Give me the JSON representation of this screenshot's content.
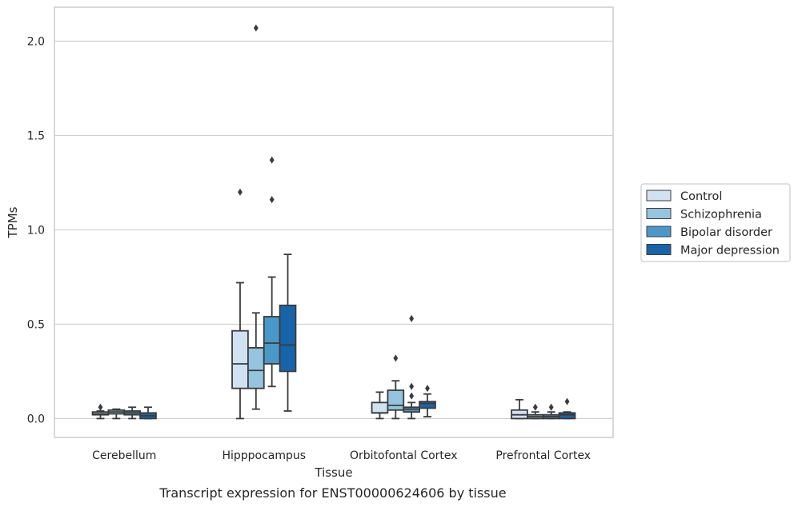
{
  "caption": "Transcript expression for ENST00000624606 by tissue",
  "chart_data": {
    "type": "box",
    "title": "",
    "xlabel": "Tissue",
    "ylabel": "TPMs",
    "ylim": [
      -0.1,
      2.18
    ],
    "yticks": [
      0.0,
      0.5,
      1.0,
      1.5,
      2.0
    ],
    "ytick_labels": [
      "0.0",
      "0.5",
      "1.0",
      "1.5",
      "2.0"
    ],
    "grid": "horizontal",
    "legend_position": "right",
    "categories": [
      "Cerebellum",
      "Hipppocampus",
      "Orbitofontal Cortex",
      "Prefrontal Cortex"
    ],
    "series": [
      {
        "name": "Control",
        "color": "#d0e1f2",
        "boxes": [
          {
            "whislo": 0.0,
            "q1": 0.02,
            "med": 0.025,
            "q3": 0.035,
            "whishi": 0.04,
            "fliers": [
              0.06
            ]
          },
          {
            "whislo": 0.0,
            "q1": 0.16,
            "med": 0.29,
            "q3": 0.465,
            "whishi": 0.72,
            "fliers": [
              1.2
            ]
          },
          {
            "whislo": 0.0,
            "q1": 0.03,
            "med": 0.03,
            "q3": 0.085,
            "whishi": 0.14,
            "fliers": []
          },
          {
            "whislo": 0.0,
            "q1": 0.0,
            "med": 0.02,
            "q3": 0.045,
            "whishi": 0.1,
            "fliers": []
          }
        ]
      },
      {
        "name": "Schizophrenia",
        "color": "#94c4df",
        "boxes": [
          {
            "whislo": 0.0,
            "q1": 0.025,
            "med": 0.035,
            "q3": 0.045,
            "whishi": 0.05,
            "fliers": []
          },
          {
            "whislo": 0.05,
            "q1": 0.16,
            "med": 0.255,
            "q3": 0.375,
            "whishi": 0.56,
            "fliers": [
              2.07
            ]
          },
          {
            "whislo": 0.0,
            "q1": 0.045,
            "med": 0.07,
            "q3": 0.15,
            "whishi": 0.2,
            "fliers": [
              0.32
            ]
          },
          {
            "whislo": 0.0,
            "q1": 0.0,
            "med": 0.01,
            "q3": 0.02,
            "whishi": 0.035,
            "fliers": [
              0.06
            ]
          }
        ]
      },
      {
        "name": "Bipolar disorder",
        "color": "#4a98c9",
        "boxes": [
          {
            "whislo": 0.0,
            "q1": 0.02,
            "med": 0.03,
            "q3": 0.04,
            "whishi": 0.06,
            "fliers": []
          },
          {
            "whislo": 0.17,
            "q1": 0.29,
            "med": 0.4,
            "q3": 0.54,
            "whishi": 0.75,
            "fliers": [
              1.37,
              1.16
            ]
          },
          {
            "whislo": 0.0,
            "q1": 0.035,
            "med": 0.05,
            "q3": 0.06,
            "whishi": 0.085,
            "fliers": [
              0.17,
              0.12,
              0.53
            ]
          },
          {
            "whislo": 0.0,
            "q1": 0.0,
            "med": 0.01,
            "q3": 0.02,
            "whishi": 0.035,
            "fliers": [
              0.06
            ]
          }
        ]
      },
      {
        "name": "Major depression",
        "color": "#1764ab",
        "boxes": [
          {
            "whislo": 0.0,
            "q1": 0.0,
            "med": 0.015,
            "q3": 0.03,
            "whishi": 0.06,
            "fliers": []
          },
          {
            "whislo": 0.04,
            "q1": 0.25,
            "med": 0.39,
            "q3": 0.6,
            "whishi": 0.87,
            "fliers": []
          },
          {
            "whislo": 0.01,
            "q1": 0.055,
            "med": 0.08,
            "q3": 0.09,
            "whishi": 0.13,
            "fliers": [
              0.16
            ]
          },
          {
            "whislo": 0.0,
            "q1": 0.0,
            "med": 0.02,
            "q3": 0.03,
            "whishi": 0.035,
            "fliers": [
              0.09
            ]
          }
        ]
      }
    ]
  }
}
